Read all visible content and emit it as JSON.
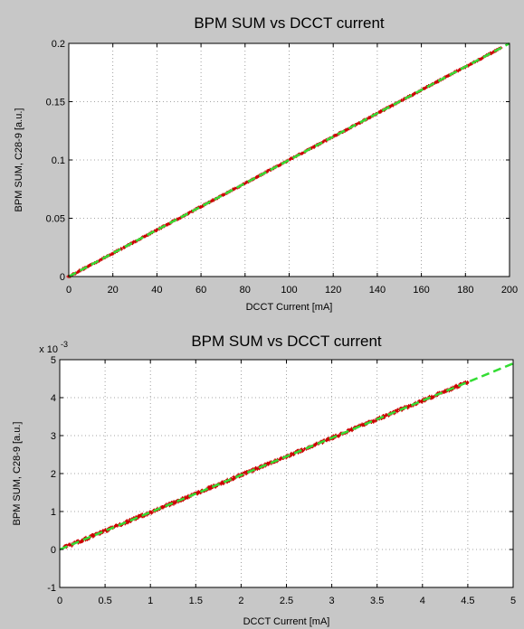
{
  "chart_data": [
    {
      "type": "scatter",
      "title": "BPM SUM vs DCCT current",
      "xlabel": "DCCT Current [mA]",
      "ylabel": "BPM SUM, C28-9 [a.u.]",
      "xlim": [
        0,
        200
      ],
      "ylim": [
        0,
        0.2
      ],
      "xticks": [
        "0",
        "20",
        "40",
        "60",
        "80",
        "100",
        "120",
        "140",
        "160",
        "180",
        "200"
      ],
      "yticks": [
        "0",
        "0.05",
        "0.1",
        "0.15",
        "0.2"
      ],
      "grid": true,
      "series": [
        {
          "style": "points",
          "color": "#cc0000",
          "x_range": [
            0,
            196
          ],
          "slope": 0.001
        },
        {
          "style": "dashed-line",
          "color": "#33dd33",
          "x": [
            0,
            200
          ],
          "y": [
            0,
            0.2
          ]
        }
      ]
    },
    {
      "type": "scatter",
      "title": "BPM SUM vs DCCT current",
      "xlabel": "DCCT Current [mA]",
      "ylabel": "BPM SUM, C28-9 [a.u.]",
      "xlim": [
        0,
        5
      ],
      "ylim": [
        -1,
        5
      ],
      "y_exponent_base": "x 10",
      "y_exponent_power": "-3",
      "xticks": [
        "0",
        "0.5",
        "1",
        "1.5",
        "2",
        "2.5",
        "3",
        "3.5",
        "4",
        "4.5",
        "5"
      ],
      "yticks": [
        "-1",
        "0",
        "1",
        "2",
        "3",
        "4",
        "5"
      ],
      "grid": true,
      "series": [
        {
          "style": "points",
          "color": "#cc0000",
          "x_range": [
            0.05,
            4.5
          ],
          "slope": 0.98
        },
        {
          "style": "dashed-line",
          "color": "#33dd33",
          "x": [
            0,
            5
          ],
          "y": [
            0,
            4.9
          ]
        }
      ]
    }
  ]
}
